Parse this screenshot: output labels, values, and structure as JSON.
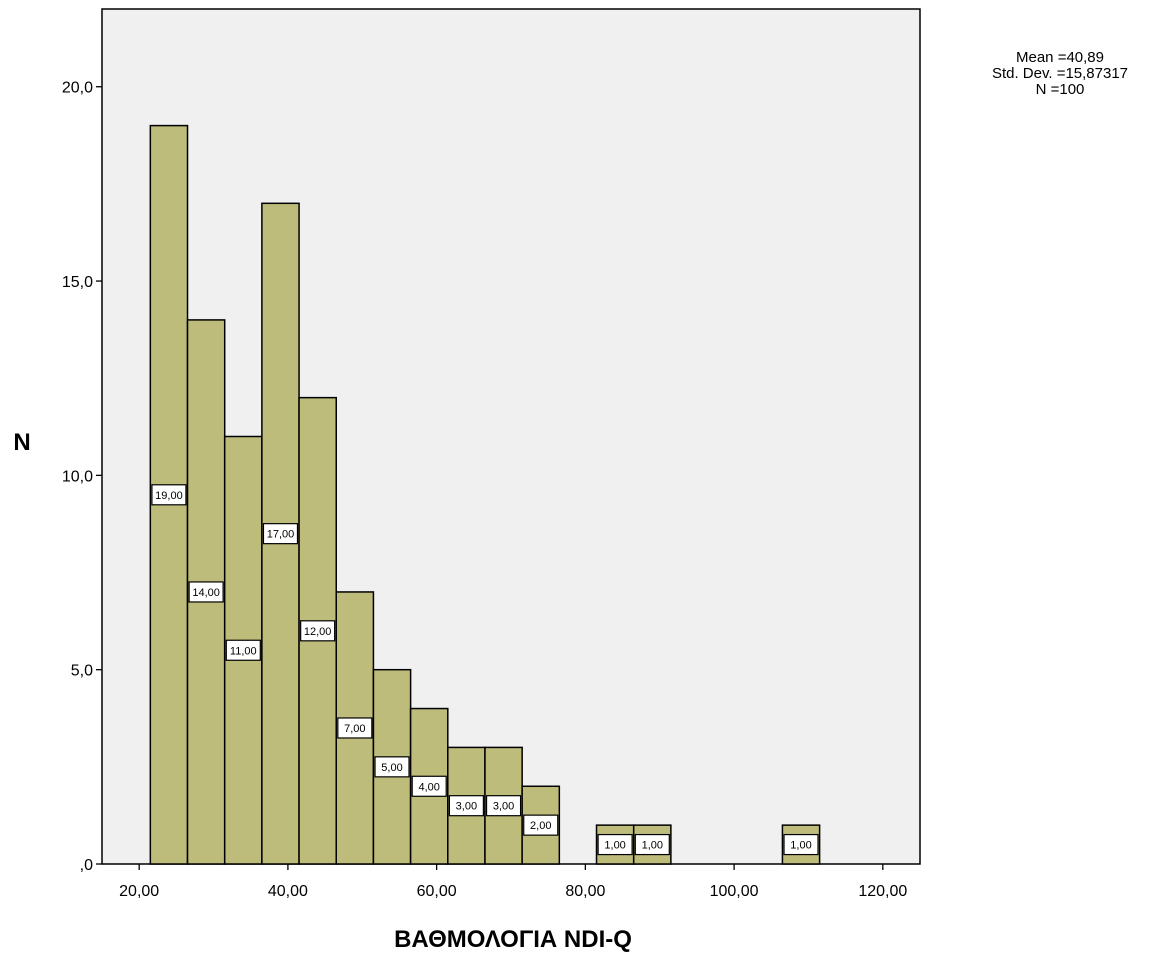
{
  "chart_data": {
    "type": "bar",
    "xlabel": "ΒΑΘΜΟΛΟΓΙΑ NDI-Q",
    "ylabel": "N",
    "xlim": [
      15,
      125
    ],
    "ylim": [
      0,
      22
    ],
    "xticks": [
      20,
      40,
      60,
      80,
      100,
      120
    ],
    "xtick_labels": [
      "20,00",
      "40,00",
      "60,00",
      "80,00",
      "100,00",
      "120,00"
    ],
    "yticks": [
      0,
      5,
      10,
      15,
      20
    ],
    "ytick_labels": [
      ",0",
      "5,0",
      "10,0",
      "15,0",
      "20,0"
    ],
    "grid": false,
    "bin_width": 5,
    "bins": [
      {
        "start": 21.5,
        "count": 19,
        "label": "19,00"
      },
      {
        "start": 26.5,
        "count": 14,
        "label": "14,00"
      },
      {
        "start": 31.5,
        "count": 11,
        "label": "11,00"
      },
      {
        "start": 36.5,
        "count": 17,
        "label": "17,00"
      },
      {
        "start": 41.5,
        "count": 12,
        "label": "12,00"
      },
      {
        "start": 46.5,
        "count": 7,
        "label": "7,00"
      },
      {
        "start": 51.5,
        "count": 5,
        "label": "5,00"
      },
      {
        "start": 56.5,
        "count": 4,
        "label": "4,00"
      },
      {
        "start": 61.5,
        "count": 3,
        "label": "3,00"
      },
      {
        "start": 66.5,
        "count": 3,
        "label": "3,00"
      },
      {
        "start": 71.5,
        "count": 2,
        "label": "2,00"
      },
      {
        "start": 81.5,
        "count": 1,
        "label": "1,00"
      },
      {
        "start": 86.5,
        "count": 1,
        "label": "1,00"
      },
      {
        "start": 106.5,
        "count": 1,
        "label": "1,00"
      }
    ],
    "stats": {
      "mean": "Mean =40,89",
      "std": "Std. Dev. =15,87317",
      "n": "N =100"
    },
    "colors": {
      "bar_fill": "#bdbc7a",
      "bar_stroke": "#000000",
      "plot_bg": "#f0f0f0",
      "label_bg": "#ffffff"
    }
  }
}
